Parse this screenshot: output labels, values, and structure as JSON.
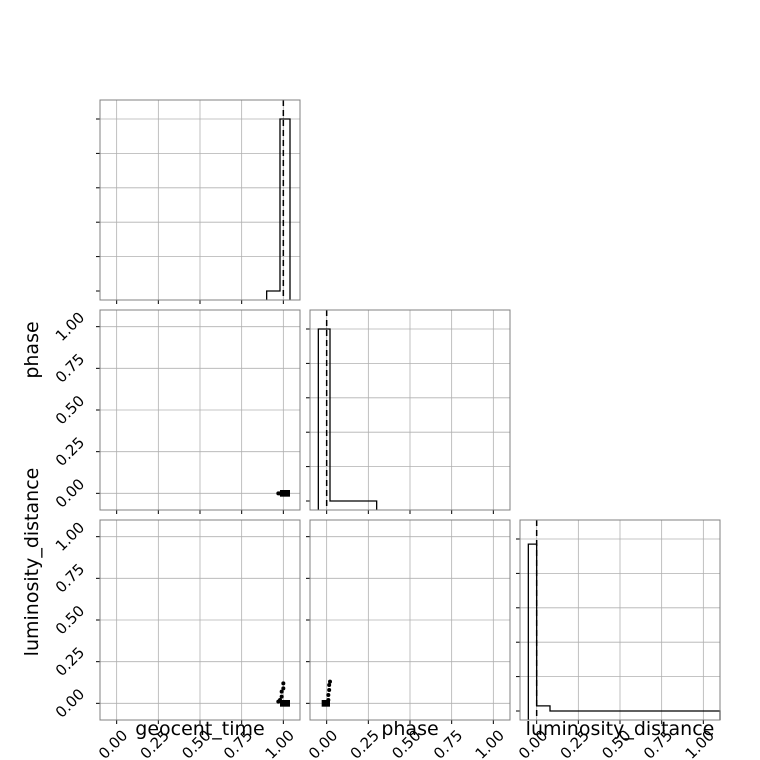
{
  "chart_data": {
    "type": "corner",
    "parameters": [
      "geocent_time",
      "phase",
      "luminosity_distance"
    ],
    "axis_labels": {
      "x": [
        "geocent_time",
        "phase",
        "luminosity_distance"
      ],
      "y": [
        "phase",
        "luminosity_distance"
      ]
    },
    "axis_range": [
      -0.1,
      1.1
    ],
    "ticks": [
      0.0,
      0.25,
      0.5,
      0.75,
      1.0
    ],
    "tick_labels": [
      "0.00",
      "0.25",
      "0.50",
      "0.75",
      "1.00"
    ],
    "grid": true,
    "colors": {
      "line": "#000000",
      "grid": "#b0b0b0",
      "frame": "#808080"
    },
    "truths": {
      "geocent_time": 1.0,
      "phase": 0.0,
      "luminosity_distance": 0.0
    },
    "histograms": [
      {
        "parameter": "geocent_time",
        "bin_edges": [
          0.9,
          0.98,
          1.04
        ],
        "counts": [
          0.0,
          1.0
        ]
      },
      {
        "parameter": "phase",
        "bin_edges": [
          -0.05,
          0.02,
          0.3
        ],
        "counts": [
          1.0,
          0.0
        ]
      },
      {
        "parameter": "luminosity_distance",
        "bin_edges": [
          -0.05,
          0.0,
          0.08,
          1.1
        ],
        "counts": [
          0.97,
          0.03,
          0.0
        ]
      }
    ],
    "scatter": [
      {
        "x_parameter": "geocent_time",
        "y_parameter": "phase",
        "points": [
          [
            0.97,
            0.0
          ],
          [
            0.98,
            0.0
          ]
        ],
        "density_block": {
          "x": [
            0.98,
            1.04
          ],
          "y": [
            -0.02,
            0.02
          ]
        }
      },
      {
        "x_parameter": "geocent_time",
        "y_parameter": "luminosity_distance",
        "points": [
          [
            0.97,
            0.01
          ],
          [
            0.98,
            0.02
          ],
          [
            0.99,
            0.04
          ],
          [
            0.99,
            0.07
          ],
          [
            1.0,
            0.09
          ],
          [
            1.0,
            0.12
          ]
        ],
        "density_block": {
          "x": [
            0.98,
            1.04
          ],
          "y": [
            -0.02,
            0.02
          ]
        }
      },
      {
        "x_parameter": "phase",
        "y_parameter": "luminosity_distance",
        "points": [
          [
            0.01,
            0.02
          ],
          [
            0.01,
            0.05
          ],
          [
            0.015,
            0.08
          ],
          [
            0.015,
            0.11
          ],
          [
            0.02,
            0.13
          ]
        ],
        "density_block": {
          "x": [
            -0.03,
            0.02
          ],
          "y": [
            -0.02,
            0.02
          ]
        }
      }
    ]
  }
}
